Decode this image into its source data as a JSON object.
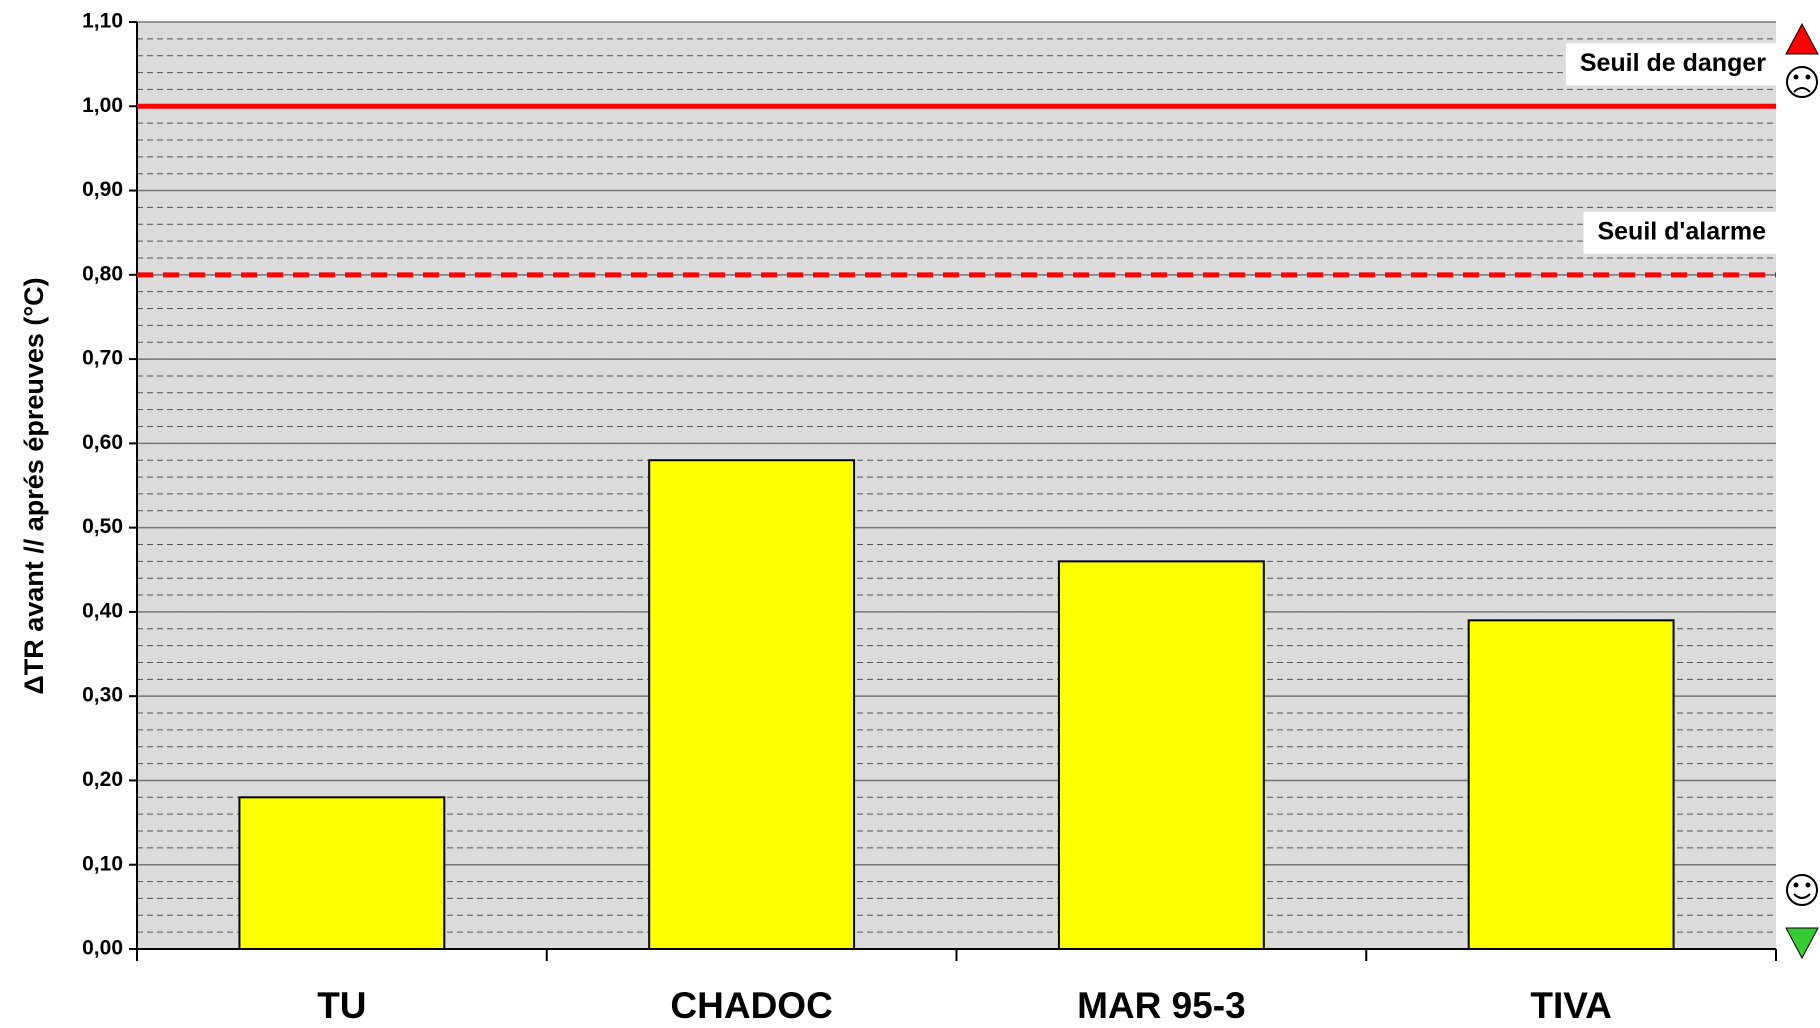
{
  "chart_data": {
    "type": "bar",
    "ylabel": "ΔTR avant // aprés épreuves (°C)",
    "categories": [
      "TU",
      "CHADOC",
      "MAR 95-3",
      "TIVA"
    ],
    "values": [
      0.18,
      0.58,
      0.46,
      0.39
    ],
    "color": "#ffff00",
    "ylim": [
      0,
      1.1
    ],
    "yticks": [
      {
        "value": 0,
        "label": "0,00"
      },
      {
        "value": 0.1,
        "label": "0,10"
      },
      {
        "value": 0.2,
        "label": "0,20"
      },
      {
        "value": 0.3,
        "label": "0,30"
      },
      {
        "value": 0.4,
        "label": "0,40"
      },
      {
        "value": 0.5,
        "label": "0,50"
      },
      {
        "value": 0.6,
        "label": "0,60"
      },
      {
        "value": 0.7,
        "label": "0,70"
      },
      {
        "value": 0.8,
        "label": "0,80"
      },
      {
        "value": 0.9,
        "label": "0,90"
      },
      {
        "value": 1.0,
        "label": "1,00"
      },
      {
        "value": 1.1,
        "label": "1,10"
      }
    ],
    "minor_ystep": 0.02,
    "grid": true,
    "thresholds": [
      {
        "label": "Seuil de danger",
        "value": 1.0,
        "color": "#ff0000",
        "style": "solid"
      },
      {
        "label": "Seuil d'alarme",
        "value": 0.8,
        "color": "#ff0000",
        "style": "dashed"
      }
    ]
  }
}
